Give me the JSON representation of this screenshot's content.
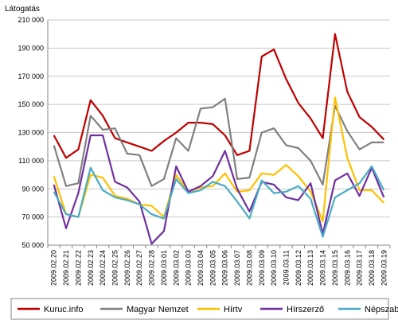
{
  "chart_data": {
    "type": "line",
    "ylabel": "Látogatás",
    "ylim": [
      50000,
      210000
    ],
    "ytick_step": 20000,
    "ytick_labels": [
      "50 000",
      "70 000",
      "90 000",
      "110 000",
      "130 000",
      "150 000",
      "170 000",
      "190 000",
      "210 000"
    ],
    "grid": true,
    "legend_position": "bottom",
    "categories": [
      "2009.02.20",
      "2009.02.21",
      "2009.02.22",
      "2009.02.23",
      "2009.02.24",
      "2009.02.25",
      "2009.02.26",
      "2009.02.27",
      "2009.02.28",
      "2009.03.01",
      "2009.03.02",
      "2009.03.03",
      "2009.03.04",
      "2009.03.05",
      "2009.03.06",
      "2009.03.07",
      "2009.03.08",
      "2009.03.09",
      "2009.03.10",
      "2009.03.11",
      "2009.03.12",
      "2009.03.13",
      "2009.03.14",
      "2009.03.15",
      "2009.03.16",
      "2009.03.17",
      "2009.03.18",
      "2009.03.19"
    ],
    "series": [
      {
        "name": "Kuruc.info",
        "color": "#c00000",
        "values": [
          128000,
          112000,
          118000,
          153000,
          142000,
          126000,
          123000,
          120000,
          117000,
          124000,
          130000,
          137000,
          137000,
          136000,
          128000,
          114000,
          117000,
          184000,
          189000,
          168000,
          151000,
          140000,
          126000,
          200000,
          159000,
          141000,
          134000,
          125000
        ]
      },
      {
        "name": "Magyar Nemzet",
        "color": "#808080",
        "values": [
          121000,
          92000,
          94000,
          142000,
          132000,
          133000,
          115000,
          114000,
          92000,
          97000,
          126000,
          117000,
          147000,
          148000,
          154000,
          97000,
          98000,
          130000,
          133000,
          121000,
          119000,
          110000,
          93000,
          149000,
          131000,
          118000,
          123000,
          123000
        ]
      },
      {
        "name": "Hírtv",
        "color": "#ffc000",
        "values": [
          99000,
          72000,
          70000,
          100000,
          98000,
          85000,
          83000,
          79000,
          78000,
          70000,
          100000,
          88000,
          91000,
          92000,
          101000,
          88000,
          89000,
          101000,
          100000,
          107000,
          99000,
          88000,
          67000,
          155000,
          112000,
          89000,
          89000,
          80000
        ]
      },
      {
        "name": "Hírszerző",
        "color": "#7030a0",
        "values": [
          93000,
          62000,
          87000,
          128000,
          128000,
          95000,
          91000,
          81000,
          51000,
          60000,
          106000,
          88000,
          92000,
          99000,
          117000,
          90000,
          74000,
          95000,
          93000,
          84000,
          82000,
          94000,
          58000,
          96000,
          101000,
          85000,
          105000,
          84000
        ]
      },
      {
        "name": "Népszabadság",
        "color": "#4bacc6",
        "values": [
          88000,
          72000,
          70000,
          105000,
          89000,
          84000,
          82000,
          79000,
          72000,
          69000,
          97000,
          87000,
          89000,
          95000,
          92000,
          81000,
          69000,
          96000,
          87000,
          88000,
          92000,
          83000,
          56000,
          84000,
          89000,
          94000,
          106000,
          89000
        ]
      }
    ]
  }
}
